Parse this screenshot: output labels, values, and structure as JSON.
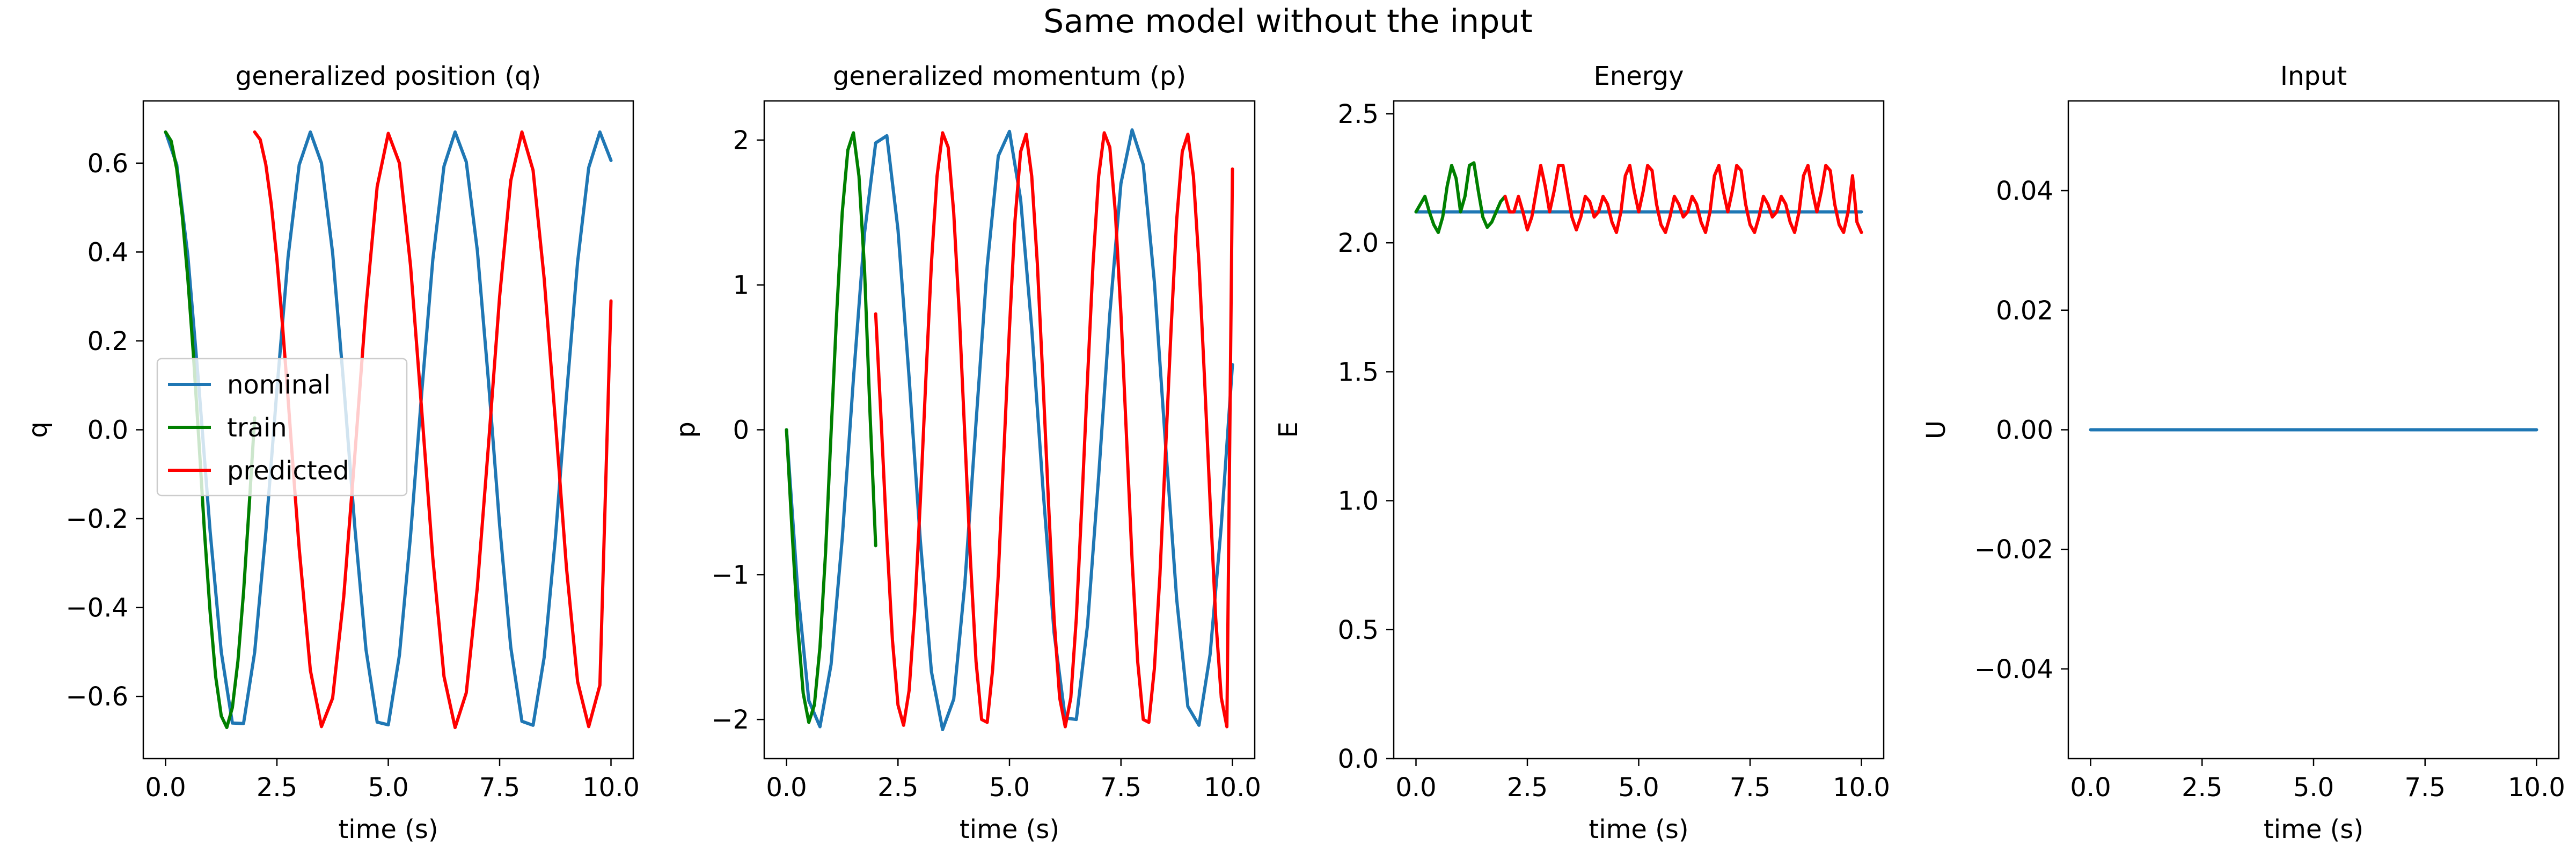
{
  "suptitle": "Same model without the input",
  "colors": {
    "nominal": "#1f77b4",
    "train": "#008000",
    "predicted": "#ff0000",
    "axis": "#000000"
  },
  "chart_data": [
    {
      "type": "line",
      "title": "generalized position (q)",
      "xlabel": "time (s)",
      "ylabel": "q",
      "xlim": [
        -0.5,
        10.5
      ],
      "ylim": [
        -0.74,
        0.74
      ],
      "xticks": [
        0,
        2.5,
        5,
        7.5,
        10
      ],
      "xtick_labels": [
        "0.0",
        "2.5",
        "5.0",
        "7.5",
        "10.0"
      ],
      "yticks": [
        -0.6,
        -0.4,
        -0.2,
        0,
        0.2,
        0.4,
        0.6
      ],
      "ytick_labels": [
        "−0.6",
        "−0.4",
        "−0.2",
        "0.0",
        "0.2",
        "0.4",
        "0.6"
      ],
      "legend": {
        "placement": "center-left",
        "entries": [
          "nominal",
          "train",
          "predicted"
        ]
      },
      "series": [
        {
          "name": "nominal",
          "color": "nominal",
          "x": [
            0.0,
            0.25,
            0.5,
            0.75,
            1.0,
            1.25,
            1.5,
            1.75,
            2.0,
            2.25,
            2.5,
            2.75,
            3.0,
            3.25,
            3.5,
            3.75,
            4.0,
            4.25,
            4.5,
            4.75,
            5.0,
            5.25,
            5.5,
            5.75,
            6.0,
            6.25,
            6.5,
            6.75,
            7.0,
            7.25,
            7.5,
            7.75,
            8.0,
            8.25,
            8.5,
            8.75,
            9.0,
            9.25,
            9.5,
            9.75,
            10.0
          ],
          "y": [
            0.67,
            0.597,
            0.392,
            0.094,
            -0.228,
            -0.5,
            -0.66,
            -0.661,
            -0.501,
            -0.231,
            0.09,
            0.389,
            0.596,
            0.67,
            0.6,
            0.398,
            0.101,
            -0.221,
            -0.495,
            -0.658,
            -0.664,
            -0.507,
            -0.238,
            0.083,
            0.383,
            0.593,
            0.67,
            0.603,
            0.403,
            0.108,
            -0.215,
            -0.49,
            -0.656,
            -0.665,
            -0.512,
            -0.245,
            0.076,
            0.378,
            0.59,
            0.67,
            0.606
          ]
        },
        {
          "name": "train",
          "color": "train",
          "x": [
            0.0,
            0.125,
            0.25,
            0.375,
            0.5,
            0.625,
            0.75,
            0.875,
            1.0,
            1.125,
            1.25,
            1.375,
            1.5,
            1.625,
            1.75,
            1.875,
            2.0
          ],
          "y": [
            0.67,
            0.65,
            0.587,
            0.482,
            0.34,
            0.169,
            -0.028,
            -0.231,
            -0.41,
            -0.556,
            -0.644,
            -0.67,
            -0.625,
            -0.52,
            -0.366,
            -0.176,
            0.027
          ]
        },
        {
          "name": "predicted",
          "color": "predicted",
          "x": [
            2.0,
            2.125,
            2.25,
            2.375,
            2.5,
            2.625,
            2.75,
            2.875,
            3.0,
            3.25,
            3.5,
            3.75,
            4.0,
            4.25,
            4.5,
            4.75,
            5.0,
            5.25,
            5.5,
            5.75,
            6.0,
            6.25,
            6.5,
            6.75,
            7.0,
            7.25,
            7.5,
            7.75,
            8.0,
            8.25,
            8.5,
            8.75,
            9.0,
            9.25,
            9.5,
            9.75,
            10.0
          ],
          "y": [
            0.67,
            0.653,
            0.597,
            0.506,
            0.383,
            0.235,
            0.07,
            -0.101,
            -0.267,
            -0.541,
            -0.668,
            -0.604,
            -0.376,
            -0.055,
            0.277,
            0.547,
            0.667,
            0.6,
            0.369,
            0.044,
            -0.289,
            -0.555,
            -0.67,
            -0.592,
            -0.354,
            -0.033,
            0.3,
            0.561,
            0.67,
            0.584,
            0.34,
            0.021,
            -0.31,
            -0.567,
            -0.668,
            -0.575,
            0.29
          ]
        }
      ]
    },
    {
      "type": "line",
      "title": "generalized momentum (p)",
      "xlabel": "time (s)",
      "ylabel": "p",
      "xlim": [
        -0.5,
        10.5
      ],
      "ylim": [
        -2.27,
        2.27
      ],
      "xticks": [
        0,
        2.5,
        5,
        7.5,
        10
      ],
      "xtick_labels": [
        "0.0",
        "2.5",
        "5.0",
        "7.5",
        "10.0"
      ],
      "yticks": [
        -2,
        -1,
        0,
        1,
        2
      ],
      "ytick_labels": [
        "−2",
        "−1",
        "0",
        "1",
        "2"
      ],
      "series": [
        {
          "name": "nominal",
          "color": "nominal",
          "x": [
            0.0,
            0.25,
            0.5,
            0.75,
            1.0,
            1.25,
            1.5,
            1.75,
            2.0,
            2.25,
            2.5,
            2.75,
            3.0,
            3.25,
            3.5,
            3.75,
            4.0,
            4.25,
            4.5,
            4.75,
            5.0,
            5.25,
            5.5,
            5.75,
            6.0,
            6.25,
            6.5,
            6.75,
            7.0,
            7.25,
            7.5,
            7.75,
            8.0,
            8.25,
            8.5,
            8.75,
            9.0,
            9.25,
            9.5,
            9.75,
            10.0
          ],
          "y": [
            0.0,
            -1.1,
            -1.87,
            -2.05,
            -1.62,
            -0.75,
            0.35,
            1.36,
            1.98,
            2.03,
            1.38,
            0.36,
            -0.76,
            -1.67,
            -2.07,
            -1.86,
            -1.06,
            0.05,
            1.13,
            1.89,
            2.06,
            1.59,
            0.7,
            -0.4,
            -1.4,
            -1.99,
            -2.0,
            -1.35,
            -0.32,
            0.8,
            1.7,
            2.07,
            1.83,
            1.02,
            -0.1,
            -1.17,
            -1.91,
            -2.04,
            -1.55,
            -0.66,
            0.45
          ]
        },
        {
          "name": "train",
          "color": "train",
          "x": [
            0.0,
            0.125,
            0.25,
            0.375,
            0.5,
            0.625,
            0.75,
            0.875,
            1.0,
            1.125,
            1.25,
            1.375,
            1.5,
            1.625,
            1.75,
            1.875,
            2.0
          ],
          "y": [
            0.0,
            -0.7,
            -1.35,
            -1.82,
            -2.02,
            -1.9,
            -1.5,
            -0.85,
            -0.02,
            0.8,
            1.5,
            1.93,
            2.05,
            1.75,
            1.1,
            0.1,
            -0.8
          ]
        },
        {
          "name": "predicted",
          "color": "predicted",
          "x": [
            2.0,
            2.125,
            2.25,
            2.375,
            2.5,
            2.625,
            2.75,
            2.875,
            3.0,
            3.125,
            3.25,
            3.375,
            3.5,
            3.625,
            3.75,
            3.875,
            4.0,
            4.125,
            4.25,
            4.375,
            4.5,
            4.625,
            4.75,
            4.875,
            5.0,
            5.125,
            5.25,
            5.375,
            5.5,
            5.625,
            5.75,
            5.875,
            6.0,
            6.125,
            6.25,
            6.375,
            6.5,
            6.625,
            6.75,
            6.875,
            7.0,
            7.125,
            7.25,
            7.375,
            7.5,
            7.625,
            7.75,
            7.875,
            8.0,
            8.125,
            8.25,
            8.375,
            8.5,
            8.625,
            8.75,
            8.875,
            9.0,
            9.125,
            9.25,
            9.375,
            9.5,
            9.625,
            9.75,
            9.875,
            10.0
          ],
          "y": [
            0.8,
            0.05,
            -0.75,
            -1.45,
            -1.9,
            -2.04,
            -1.8,
            -1.25,
            -0.5,
            0.35,
            1.15,
            1.75,
            2.05,
            1.95,
            1.5,
            0.8,
            -0.05,
            -0.9,
            -1.6,
            -2.0,
            -2.02,
            -1.65,
            -1.0,
            -0.15,
            0.7,
            1.45,
            1.92,
            2.04,
            1.75,
            1.15,
            0.35,
            -0.5,
            -1.3,
            -1.85,
            -2.05,
            -1.85,
            -1.3,
            -0.5,
            0.35,
            1.15,
            1.75,
            2.05,
            1.95,
            1.5,
            0.8,
            -0.05,
            -0.9,
            -1.6,
            -2.0,
            -2.02,
            -1.65,
            -1.0,
            -0.15,
            0.7,
            1.45,
            1.92,
            2.04,
            1.75,
            1.15,
            0.35,
            -0.5,
            -1.3,
            -1.85,
            -2.05,
            1.8
          ]
        }
      ]
    },
    {
      "type": "line",
      "title": "Energy",
      "xlabel": "time (s)",
      "ylabel": "E",
      "xlim": [
        -0.5,
        10.5
      ],
      "ylim": [
        0,
        2.55
      ],
      "xticks": [
        0,
        2.5,
        5,
        7.5,
        10
      ],
      "xtick_labels": [
        "0.0",
        "2.5",
        "5.0",
        "7.5",
        "10.0"
      ],
      "yticks": [
        0,
        0.5,
        1.0,
        1.5,
        2.0,
        2.5
      ],
      "ytick_labels": [
        "0.0",
        "0.5",
        "1.0",
        "1.5",
        "2.0",
        "2.5"
      ],
      "series": [
        {
          "name": "nominal",
          "color": "nominal",
          "x": [
            0,
            10
          ],
          "y": [
            2.12,
            2.12
          ]
        },
        {
          "name": "train",
          "color": "train",
          "x": [
            0.0,
            0.1,
            0.2,
            0.3,
            0.4,
            0.5,
            0.6,
            0.7,
            0.8,
            0.9,
            1.0,
            1.1,
            1.2,
            1.3,
            1.4,
            1.5,
            1.6,
            1.7,
            1.8,
            1.9,
            2.0
          ],
          "y": [
            2.12,
            2.15,
            2.18,
            2.12,
            2.07,
            2.04,
            2.1,
            2.22,
            2.3,
            2.25,
            2.12,
            2.18,
            2.3,
            2.31,
            2.2,
            2.1,
            2.06,
            2.08,
            2.12,
            2.16,
            2.18
          ]
        },
        {
          "name": "predicted",
          "color": "predicted",
          "x": [
            2.0,
            2.1,
            2.2,
            2.3,
            2.4,
            2.5,
            2.6,
            2.7,
            2.8,
            2.9,
            3.0,
            3.1,
            3.2,
            3.3,
            3.4,
            3.5,
            3.6,
            3.7,
            3.8,
            3.9,
            4.0,
            4.1,
            4.2,
            4.3,
            4.4,
            4.5,
            4.6,
            4.7,
            4.8,
            4.9,
            5.0,
            5.1,
            5.2,
            5.3,
            5.4,
            5.5,
            5.6,
            5.7,
            5.8,
            5.9,
            6.0,
            6.1,
            6.2,
            6.3,
            6.4,
            6.5,
            6.6,
            6.7,
            6.8,
            6.9,
            7.0,
            7.1,
            7.2,
            7.3,
            7.4,
            7.5,
            7.6,
            7.7,
            7.8,
            7.9,
            8.0,
            8.1,
            8.2,
            8.3,
            8.4,
            8.5,
            8.6,
            8.7,
            8.8,
            8.9,
            9.0,
            9.1,
            9.2,
            9.3,
            9.4,
            9.5,
            9.6,
            9.7,
            9.8,
            9.9,
            10.0
          ],
          "y": [
            2.18,
            2.12,
            2.12,
            2.18,
            2.12,
            2.05,
            2.1,
            2.2,
            2.3,
            2.22,
            2.12,
            2.2,
            2.3,
            2.3,
            2.2,
            2.1,
            2.05,
            2.1,
            2.18,
            2.16,
            2.1,
            2.12,
            2.18,
            2.15,
            2.08,
            2.04,
            2.12,
            2.26,
            2.3,
            2.2,
            2.12,
            2.2,
            2.3,
            2.28,
            2.15,
            2.07,
            2.04,
            2.1,
            2.18,
            2.15,
            2.1,
            2.12,
            2.18,
            2.15,
            2.08,
            2.04,
            2.12,
            2.26,
            2.3,
            2.2,
            2.12,
            2.2,
            2.3,
            2.28,
            2.15,
            2.07,
            2.04,
            2.1,
            2.18,
            2.15,
            2.1,
            2.12,
            2.18,
            2.15,
            2.08,
            2.04,
            2.12,
            2.26,
            2.3,
            2.2,
            2.12,
            2.2,
            2.3,
            2.28,
            2.15,
            2.07,
            2.04,
            2.12,
            2.26,
            2.08,
            2.04
          ]
        }
      ]
    },
    {
      "type": "line",
      "title": "Input",
      "xlabel": "time (s)",
      "ylabel": "U",
      "xlim": [
        -0.5,
        10.5
      ],
      "ylim": [
        -0.055,
        0.055
      ],
      "xticks": [
        0,
        2.5,
        5,
        7.5,
        10
      ],
      "xtick_labels": [
        "0.0",
        "2.5",
        "5.0",
        "7.5",
        "10.0"
      ],
      "yticks": [
        -0.04,
        -0.02,
        0,
        0.02,
        0.04
      ],
      "ytick_labels": [
        "−0.04",
        "−0.02",
        "0.00",
        "0.02",
        "0.04"
      ],
      "series": [
        {
          "name": "nominal",
          "color": "nominal",
          "x": [
            0,
            10
          ],
          "y": [
            0,
            0
          ]
        }
      ]
    }
  ]
}
